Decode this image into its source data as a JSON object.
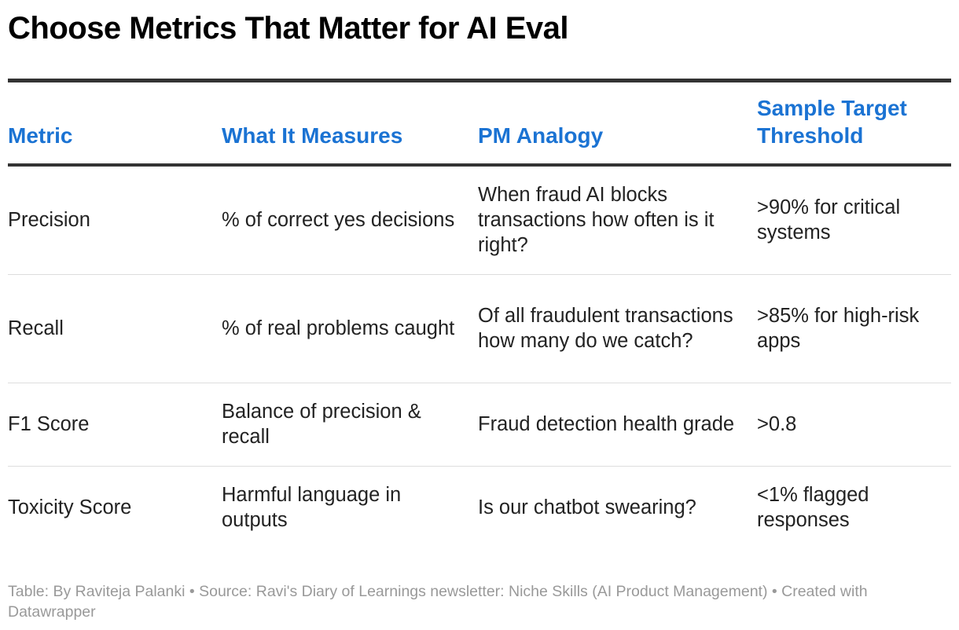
{
  "title": "Choose Metrics That Matter for AI Eval",
  "chart_data": {
    "type": "table",
    "columns": [
      "Metric",
      "What It Measures",
      "PM Analogy",
      "Sample Target Threshold"
    ],
    "rows": [
      [
        "Precision",
        "% of correct yes decisions",
        "When fraud AI blocks transactions how often is it right?",
        ">90% for critical systems"
      ],
      [
        "Recall",
        "% of real problems caught",
        "Of all fraudulent transactions how many do we catch?",
        ">85% for high-risk apps"
      ],
      [
        "F1 Score",
        "Balance of precision & recall",
        "Fraud detection health grade",
        ">0.8"
      ],
      [
        "Toxicity Score",
        "Harmful language in outputs",
        "Is our chatbot swearing?",
        "<1% flagged responses"
      ]
    ]
  },
  "footer": "Table: By Raviteja Palanki  • Source: Ravi's Diary of Learnings newsletter: Niche Skills (AI Product Management) • Created with Datawrapper",
  "colors": {
    "header_text": "#1b73d3",
    "title_text": "#000000",
    "body_text": "#222222",
    "footer_text": "#999999",
    "rule": "#333333",
    "row_divider": "#dddddd"
  }
}
